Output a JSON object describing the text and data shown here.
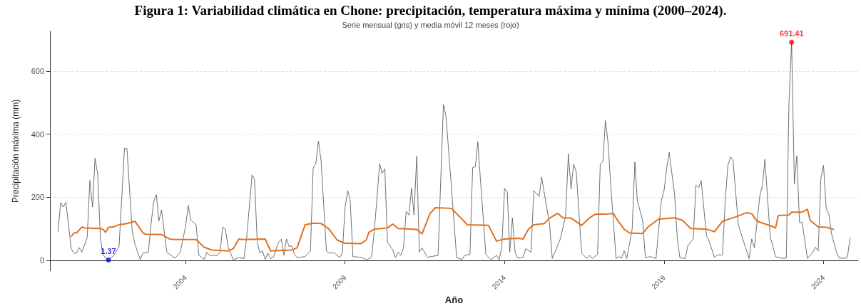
{
  "chart_data": {
    "type": "line",
    "title": "Figura 1: Variabilidad climática en Chone: precipitación, temperatura máxima y mínima (2000–2024).",
    "subtitle": "Serie mensual (gris) y media móvil 12 meses (rojo)",
    "xlabel": "Año",
    "ylabel": "Precipitación máxima (mm)",
    "xlim": [
      "1999-10",
      "2025-02"
    ],
    "xticks": [
      "2004",
      "2009",
      "2014",
      "2019",
      "2024"
    ],
    "ylim": [
      -33,
      726
    ],
    "yticks": [
      0,
      200,
      400,
      600
    ],
    "grid": "y",
    "marker": "none",
    "line_style": "solid",
    "series": [
      {
        "color": "#4d4d4d",
        "x": [
          "2000-01",
          "2000-02",
          "2000-03",
          "2000-04",
          "2000-05",
          "2000-06",
          "2000-07",
          "2000-08",
          "2000-09",
          "2000-10",
          "2000-12",
          "2001-01",
          "2001-02",
          "2001-03",
          "2001-04",
          "2001-05",
          "2001-06",
          "2001-08",
          "2001-10",
          "2001-12",
          "2002-02",
          "2002-03",
          "2002-05",
          "2002-06",
          "2002-08",
          "2002-09",
          "2002-11",
          "2002-12",
          "2003-01",
          "2003-02",
          "2003-03",
          "2003-04",
          "2003-06",
          "2003-09",
          "2003-11",
          "2004-01",
          "2004-02",
          "2004-03",
          "2004-05",
          "2004-06",
          "2004-08",
          "2004-09",
          "2004-10",
          "2005-01",
          "2005-02",
          "2005-03",
          "2005-04",
          "2005-05",
          "2005-07",
          "2005-09",
          "2005-11",
          "2005-12",
          "2006-02",
          "2006-03",
          "2006-04",
          "2006-05",
          "2006-06",
          "2006-07",
          "2006-08",
          "2006-09",
          "2006-10",
          "2006-12",
          "2007-01",
          "2007-02",
          "2007-03",
          "2007-04",
          "2007-05",
          "2007-06",
          "2007-07",
          "2007-10",
          "2007-12",
          "2008-01",
          "2008-02",
          "2008-03",
          "2008-04",
          "2008-06",
          "2008-07",
          "2008-09",
          "2008-11",
          "2008-12",
          "2009-01",
          "2009-02",
          "2009-03",
          "2009-04",
          "2009-07",
          "2009-09",
          "2009-11",
          "2009-12",
          "2010-01",
          "2010-02",
          "2010-03",
          "2010-04",
          "2010-05",
          "2010-07",
          "2010-08",
          "2010-09",
          "2010-10",
          "2010-11",
          "2010-12",
          "2011-01",
          "2011-02",
          "2011-03",
          "2011-04",
          "2011-05",
          "2011-06",
          "2011-08",
          "2011-12",
          "2012-02",
          "2012-03",
          "2012-05",
          "2012-07",
          "2012-09",
          "2012-10",
          "2012-12",
          "2013-01",
          "2013-02",
          "2013-03",
          "2013-04",
          "2013-06",
          "2013-08",
          "2013-10",
          "2013-11",
          "2013-12",
          "2014-01",
          "2014-02",
          "2014-03",
          "2014-04",
          "2014-05",
          "2014-06",
          "2014-08",
          "2014-09",
          "2014-11",
          "2014-12",
          "2015-02",
          "2015-03",
          "2015-06",
          "2015-07",
          "2015-08",
          "2015-10",
          "2015-12",
          "2016-01",
          "2016-02",
          "2016-03",
          "2016-04",
          "2016-06",
          "2016-08",
          "2016-09",
          "2016-10",
          "2016-12",
          "2017-01",
          "2017-02",
          "2017-03",
          "2017-04",
          "2017-05",
          "2017-07",
          "2017-08",
          "2017-09",
          "2017-10",
          "2017-11",
          "2018-01",
          "2018-02",
          "2018-03",
          "2018-05",
          "2018-06",
          "2018-08",
          "2018-10",
          "2018-12",
          "2019-01",
          "2019-02",
          "2019-03",
          "2019-05",
          "2019-06",
          "2019-07",
          "2019-09",
          "2019-10",
          "2019-12",
          "2020-01",
          "2020-02",
          "2020-03",
          "2020-05",
          "2020-06",
          "2020-08",
          "2020-09",
          "2020-11",
          "2020-12",
          "2021-01",
          "2021-02",
          "2021-03",
          "2021-05",
          "2021-06",
          "2021-09",
          "2021-10",
          "2021-11",
          "2022-01",
          "2022-02",
          "2022-03",
          "2022-05",
          "2022-07",
          "2022-09",
          "2022-11",
          "2022-12",
          "2023-01",
          "2023-02",
          "2023-03",
          "2023-04",
          "2023-05",
          "2023-07",
          "2023-09",
          "2023-10",
          "2023-11",
          "2023-12",
          "2024-01",
          "2024-02",
          "2024-03",
          "2024-04",
          "2024-06",
          "2024-07",
          "2024-09",
          "2024-10",
          "2024-11"
        ],
        "values": [
          89,
          183,
          169,
          184,
          113,
          37,
          23,
          23,
          40,
          26,
          72,
          254,
          169,
          324,
          273,
          72,
          16,
          1.37,
          16,
          44,
          355,
          355,
          92,
          51,
          3,
          23,
          25,
          113,
          186,
          208,
          124,
          160,
          26,
          7,
          26,
          108,
          174,
          127,
          113,
          16,
          3,
          26,
          16,
          16,
          26,
          106,
          99,
          44,
          2,
          9,
          6,
          72,
          271,
          256,
          58,
          23,
          30,
          3,
          23,
          6,
          9,
          58,
          67,
          16,
          68,
          44,
          46,
          19,
          9,
          12,
          30,
          292,
          308,
          378,
          315,
          30,
          23,
          24,
          9,
          23,
          169,
          221,
          190,
          12,
          10,
          2,
          10,
          92,
          197,
          306,
          276,
          290,
          58,
          33,
          9,
          26,
          16,
          40,
          155,
          144,
          229,
          144,
          330,
          26,
          40,
          10,
          16,
          494,
          457,
          238,
          9,
          3,
          16,
          19,
          294,
          297,
          376,
          252,
          19,
          2,
          16,
          2,
          44,
          228,
          217,
          26,
          134,
          26,
          7,
          9,
          37,
          26,
          221,
          203,
          264,
          113,
          6,
          26,
          68,
          141,
          337,
          226,
          304,
          280,
          23,
          6,
          16,
          6,
          19,
          304,
          315,
          443,
          370,
          238,
          6,
          12,
          7,
          30,
          6,
          99,
          311,
          190,
          127,
          9,
          12,
          6,
          190,
          221,
          294,
          342,
          210,
          72,
          9,
          6,
          47,
          68,
          238,
          231,
          253,
          78,
          61,
          9,
          17,
          17,
          183,
          301,
          328,
          318,
          113,
          85,
          6,
          68,
          40,
          203,
          238,
          320,
          75,
          12,
          7,
          7,
          495,
          691.41,
          242,
          332,
          120,
          120,
          6,
          26,
          42,
          30,
          259,
          301,
          162,
          148,
          85,
          23,
          7,
          7,
          10,
          73
        ]
      },
      {
        "color": "#e07020",
        "x": [
          "2000-06",
          "2000-07",
          "2000-08",
          "2000-10",
          "2000-11",
          "2001-05",
          "2001-06",
          "2001-07",
          "2001-08",
          "2001-10",
          "2001-12",
          "2002-03",
          "2002-06",
          "2002-09",
          "2002-10",
          "2003-04",
          "2003-07",
          "2003-09",
          "2004-05",
          "2004-08",
          "2004-11",
          "2005-05",
          "2005-07",
          "2005-09",
          "2005-11",
          "2006-07",
          "2006-09",
          "2006-12",
          "2007-05",
          "2007-07",
          "2007-10",
          "2008-01",
          "2008-04",
          "2008-07",
          "2008-10",
          "2009-01",
          "2009-07",
          "2009-09",
          "2009-10",
          "2009-12",
          "2010-05",
          "2010-07",
          "2010-09",
          "2011-04",
          "2011-06",
          "2011-09",
          "2011-11",
          "2012-05",
          "2012-07",
          "2012-11",
          "2013-07",
          "2013-10",
          "2014-01",
          "2014-06",
          "2014-08",
          "2014-10",
          "2014-12",
          "2015-04",
          "2015-06",
          "2015-09",
          "2015-11",
          "2016-02",
          "2016-06",
          "2016-09",
          "2016-11",
          "2017-04",
          "2017-06",
          "2017-07",
          "2017-10",
          "2017-12",
          "2018-05",
          "2018-07",
          "2018-11",
          "2019-05",
          "2019-08",
          "2019-11",
          "2020-05",
          "2020-08",
          "2020-11",
          "2021-04",
          "2021-08",
          "2021-10",
          "2021-12",
          "2022-05",
          "2022-07",
          "2022-08",
          "2022-12",
          "2023-01",
          "2023-05",
          "2023-07",
          "2023-08",
          "2023-11",
          "2024-02",
          "2024-05"
        ],
        "values": [
          75,
          87,
          87,
          106,
          103,
          101,
          98,
          89,
          105,
          106,
          113,
          117,
          124,
          87,
          83,
          82,
          68,
          66,
          66,
          42,
          33,
          30,
          37,
          68,
          66,
          68,
          30,
          31,
          33,
          40,
          113,
          118,
          117,
          99,
          65,
          54,
          53,
          65,
          89,
          99,
          103,
          115,
          101,
          98,
          84,
          149,
          167,
          165,
          148,
          113,
          111,
          61,
          68,
          70,
          68,
          99,
          113,
          117,
          134,
          149,
          135,
          134,
          111,
          135,
          146,
          147,
          149,
          134,
          99,
          87,
          85,
          106,
          131,
          135,
          127,
          101,
          99,
          91,
          124,
          138,
          151,
          148,
          124,
          110,
          103,
          142,
          144,
          153,
          153,
          162,
          127,
          106,
          105,
          98
        ]
      },
      {
        "type": "scatter",
        "color": "#ff0000",
        "x": [
          "2023-01"
        ],
        "values": [
          691.41
        ],
        "value_labels": [
          "691.41"
        ]
      },
      {
        "type": "scatter",
        "color": "#0000ff",
        "x": [
          "2001-08"
        ],
        "values": [
          1.37
        ],
        "value_labels": [
          "1.37"
        ]
      }
    ]
  }
}
